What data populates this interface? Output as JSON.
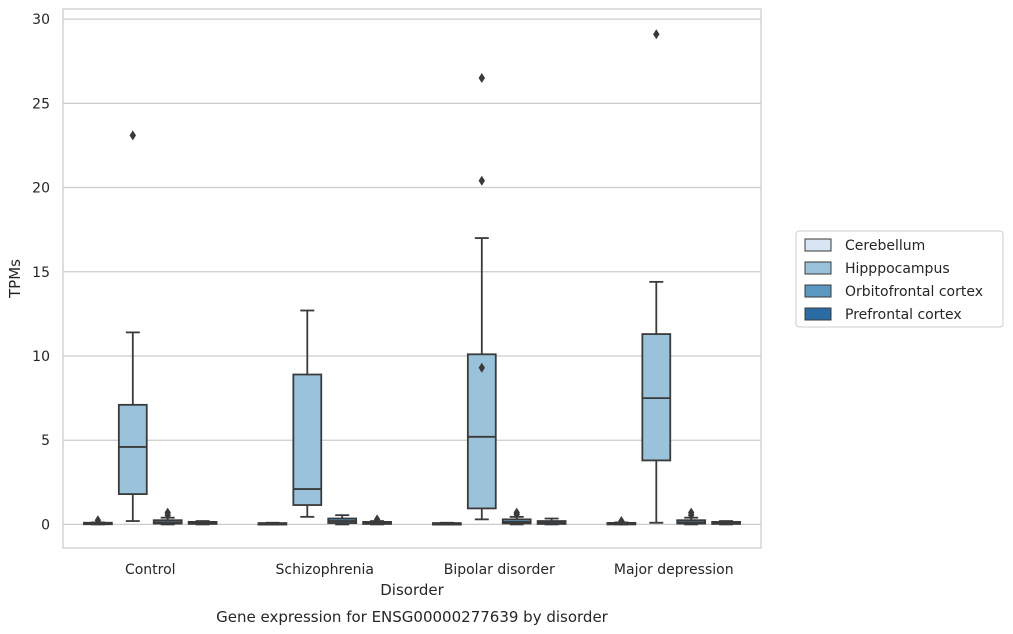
{
  "chart_data": {
    "type": "box",
    "xlabel": "Disorder",
    "ylabel": "TPMs",
    "caption": "Gene expression for ENSG00000277639 by disorder",
    "ylim": [
      -1.4,
      30.6
    ],
    "yticks": [
      0,
      5,
      10,
      15,
      20,
      25,
      30
    ],
    "grid": "horizontal",
    "legend_position": "right",
    "categories": [
      "Control",
      "Schizophrenia",
      "Bipolar disorder",
      "Major depression"
    ],
    "series": [
      {
        "name": "Cerebellum",
        "color": "#d7e6f2",
        "boxes": [
          {
            "min": 0.0,
            "q1": 0.02,
            "median": 0.05,
            "q3": 0.1,
            "max": 0.12,
            "outliers": [
              0.25
            ]
          },
          {
            "min": 0.0,
            "q1": 0.02,
            "median": 0.04,
            "q3": 0.08,
            "max": 0.1,
            "outliers": []
          },
          {
            "min": 0.0,
            "q1": 0.02,
            "median": 0.04,
            "q3": 0.08,
            "max": 0.1,
            "outliers": []
          },
          {
            "min": 0.0,
            "q1": 0.02,
            "median": 0.05,
            "q3": 0.09,
            "max": 0.12,
            "outliers": [
              0.2
            ]
          }
        ]
      },
      {
        "name": "Hipppocampus",
        "color": "#9ac3db",
        "boxes": [
          {
            "min": 0.2,
            "q1": 1.8,
            "median": 4.6,
            "q3": 7.1,
            "max": 11.4,
            "outliers": [
              23.1
            ]
          },
          {
            "min": 0.45,
            "q1": 1.15,
            "median": 2.1,
            "q3": 8.9,
            "max": 12.7,
            "outliers": []
          },
          {
            "min": 0.3,
            "q1": 0.95,
            "median": 5.2,
            "q3": 10.1,
            "max": 17.0,
            "outliers": [
              9.3,
              20.4,
              26.5
            ]
          },
          {
            "min": 0.1,
            "q1": 3.8,
            "median": 7.5,
            "q3": 11.3,
            "max": 14.4,
            "outliers": [
              29.1
            ]
          }
        ]
      },
      {
        "name": "Orbitofrontal cortex",
        "color": "#5a97c1",
        "boxes": [
          {
            "min": 0.0,
            "q1": 0.05,
            "median": 0.12,
            "q3": 0.25,
            "max": 0.4,
            "outliers": [
              0.55,
              0.7
            ]
          },
          {
            "min": 0.0,
            "q1": 0.08,
            "median": 0.2,
            "q3": 0.35,
            "max": 0.55,
            "outliers": []
          },
          {
            "min": 0.0,
            "q1": 0.06,
            "median": 0.15,
            "q3": 0.3,
            "max": 0.45,
            "outliers": [
              0.6,
              0.7
            ]
          },
          {
            "min": 0.0,
            "q1": 0.05,
            "median": 0.12,
            "q3": 0.25,
            "max": 0.4,
            "outliers": [
              0.55,
              0.7
            ]
          }
        ]
      },
      {
        "name": "Prefrontal cortex",
        "color": "#2b6ca4",
        "boxes": [
          {
            "min": 0.0,
            "q1": 0.03,
            "median": 0.08,
            "q3": 0.15,
            "max": 0.2,
            "outliers": []
          },
          {
            "min": 0.0,
            "q1": 0.03,
            "median": 0.08,
            "q3": 0.15,
            "max": 0.2,
            "outliers": [
              0.3
            ]
          },
          {
            "min": 0.0,
            "q1": 0.03,
            "median": 0.08,
            "q3": 0.2,
            "max": 0.35,
            "outliers": []
          },
          {
            "min": 0.0,
            "q1": 0.03,
            "median": 0.08,
            "q3": 0.15,
            "max": 0.2,
            "outliers": []
          }
        ]
      }
    ]
  }
}
